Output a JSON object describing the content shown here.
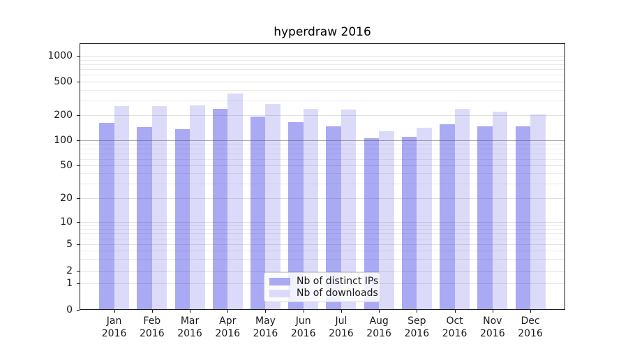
{
  "figure": {
    "background": "#ffffff",
    "text_color": "#000000"
  },
  "chart_data": {
    "type": "bar",
    "title": "hyperdraw 2016",
    "categories": [
      "Jan 2016",
      "Feb 2016",
      "Mar 2016",
      "Apr 2016",
      "May 2016",
      "Jun 2016",
      "Jul 2016",
      "Aug 2016",
      "Sep 2016",
      "Oct 2016",
      "Nov 2016",
      "Dec 2016"
    ],
    "series": [
      {
        "name": "Nb of distinct IPs",
        "color": "#a9a9f4",
        "values": [
          163,
          145,
          137,
          238,
          191,
          165,
          148,
          107,
          110,
          156,
          147,
          147
        ]
      },
      {
        "name": "Nb of downloads",
        "color": "#dbdbf9",
        "values": [
          255,
          258,
          260,
          360,
          270,
          237,
          232,
          128,
          141,
          237,
          220,
          203
        ]
      }
    ],
    "xlabel": "",
    "ylabel": "",
    "y_axis": {
      "scale": "symlog",
      "tick_values": [
        0,
        1,
        2,
        5,
        10,
        20,
        50,
        100,
        200,
        500,
        1000
      ],
      "tick_labels": [
        "0",
        "1",
        "2",
        "5",
        "10",
        "20",
        "50",
        "100",
        "200",
        "500",
        "1000"
      ],
      "top_value": 1400,
      "emphasis_line_value": 100
    },
    "grid": {
      "minor": true,
      "major": true,
      "position": "over-bars"
    },
    "legend": {
      "position": "lower center",
      "entries": [
        "Nb of distinct IPs",
        "Nb of downloads"
      ]
    }
  }
}
